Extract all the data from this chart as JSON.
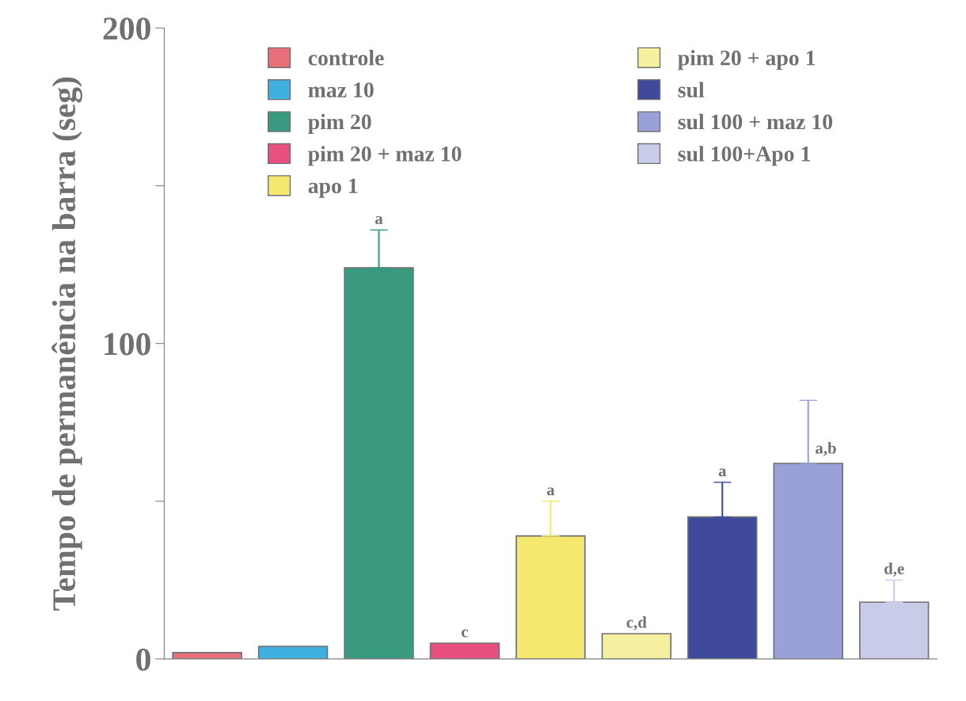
{
  "chart_data": {
    "type": "bar",
    "ylabel": "Tempo de permanência na barra (seg)",
    "categories": [
      null,
      null,
      null,
      null,
      null,
      null,
      null,
      null,
      null
    ],
    "ylim": [
      0,
      200
    ],
    "yticks": [
      0,
      {
        "value": 50,
        "label": null
      },
      100,
      {
        "value": 150,
        "label": null
      },
      200
    ],
    "tick_labels": "y",
    "grid": false,
    "legend": "top",
    "series": [
      {
        "name": "controle",
        "color": "#e8707a",
        "values": [
          2,
          null,
          null,
          null,
          null,
          null,
          null,
          null,
          null
        ]
      },
      {
        "name": "maz 10",
        "color": "#40b0e0",
        "values": [
          null,
          4,
          null,
          null,
          null,
          null,
          null,
          null,
          null
        ]
      },
      {
        "name": "pim 20",
        "color": "#3a9a80",
        "values": [
          null,
          null,
          124,
          null,
          null,
          null,
          null,
          null,
          null
        ],
        "errors": [
          null,
          null,
          12,
          null,
          null,
          null,
          null,
          null,
          null
        ],
        "value_labels": [
          null,
          null,
          "a",
          null,
          null,
          null,
          null,
          null,
          null
        ]
      },
      {
        "name": "pim 20 + maz 10",
        "color": "#e85080",
        "values": [
          null,
          null,
          null,
          5,
          null,
          null,
          null,
          null,
          null
        ],
        "value_labels": [
          null,
          null,
          null,
          "c",
          null,
          null,
          null,
          null,
          null
        ]
      },
      {
        "name": "apo 1",
        "color": "#f5e870",
        "values": [
          null,
          null,
          null,
          null,
          39,
          null,
          null,
          null,
          null
        ],
        "errors": [
          null,
          null,
          null,
          null,
          11,
          null,
          null,
          null,
          null
        ],
        "value_labels": [
          null,
          null,
          null,
          null,
          "a",
          null,
          null,
          null,
          null
        ]
      },
      {
        "name": "pim 20 + apo 1",
        "color": "#f5f0a0",
        "values": [
          null,
          null,
          null,
          null,
          null,
          8,
          null,
          null,
          null
        ],
        "value_labels": [
          null,
          null,
          null,
          null,
          null,
          "c,d",
          null,
          null,
          null
        ]
      },
      {
        "name": "sul",
        "color": "#404a9a",
        "values": [
          null,
          null,
          null,
          null,
          null,
          null,
          45,
          null,
          null
        ],
        "errors": [
          null,
          null,
          null,
          null,
          null,
          null,
          11,
          null,
          null
        ],
        "value_labels": [
          null,
          null,
          null,
          null,
          null,
          null,
          "a",
          null,
          null
        ]
      },
      {
        "name": "sul 100 + maz 10",
        "color": "#9aa0d8",
        "values": [
          null,
          null,
          null,
          null,
          null,
          null,
          null,
          62,
          null
        ],
        "errors": [
          null,
          null,
          null,
          null,
          null,
          null,
          null,
          20,
          null
        ],
        "value_labels": [
          null,
          null,
          null,
          null,
          null,
          null,
          null,
          "a,b",
          null
        ]
      },
      {
        "name": "sul 100+Apo 1",
        "color": "#c8cce8",
        "values": [
          null,
          null,
          null,
          null,
          null,
          null,
          null,
          null,
          18
        ],
        "errors": [
          null,
          null,
          null,
          null,
          null,
          null,
          null,
          null,
          7
        ],
        "value_labels": [
          null,
          null,
          null,
          null,
          null,
          null,
          null,
          null,
          "d,e"
        ]
      }
    ]
  }
}
